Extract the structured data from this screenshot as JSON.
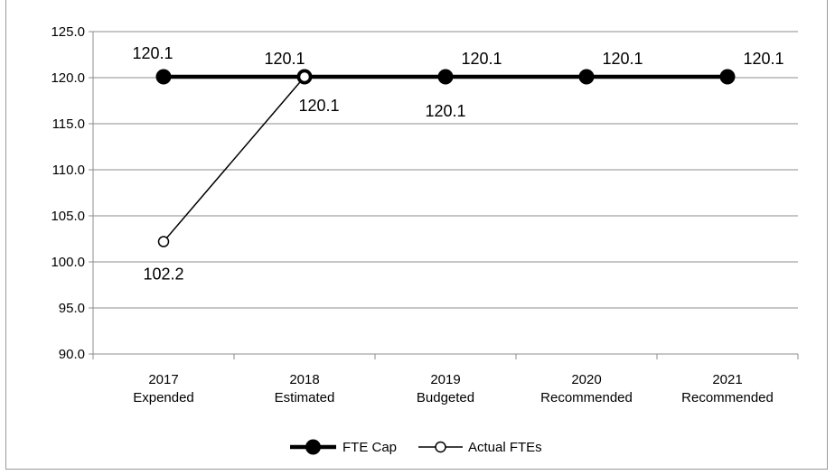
{
  "chart_data": {
    "type": "line",
    "categories": [
      [
        "2017",
        "Expended"
      ],
      [
        "2018",
        "Estimated"
      ],
      [
        "2019",
        "Budgeted"
      ],
      [
        "2020",
        "Recommended"
      ],
      [
        "2021",
        "Recommended"
      ]
    ],
    "ylim": [
      90.0,
      125.0
    ],
    "y_ticks": [
      "90.0",
      "95.0",
      "100.0",
      "105.0",
      "110.0",
      "115.0",
      "120.0",
      "125.0"
    ],
    "grid": "horizontal",
    "legend_position": "bottom",
    "series": [
      {
        "name": "FTE Cap",
        "color": "#000000",
        "marker": "filled-circle",
        "values": [
          120.1,
          120.1,
          120.1,
          120.1,
          120.1
        ],
        "labels": [
          "120.1",
          "120.1",
          "120.1",
          "120.1",
          "120.1"
        ]
      },
      {
        "name": "Actual FTEs",
        "color": "#000000",
        "marker": "open-circle",
        "values": [
          102.2,
          120.1,
          null,
          null,
          null
        ],
        "labels": [
          "102.2",
          "120.1",
          "120.1",
          null,
          null
        ]
      }
    ]
  }
}
